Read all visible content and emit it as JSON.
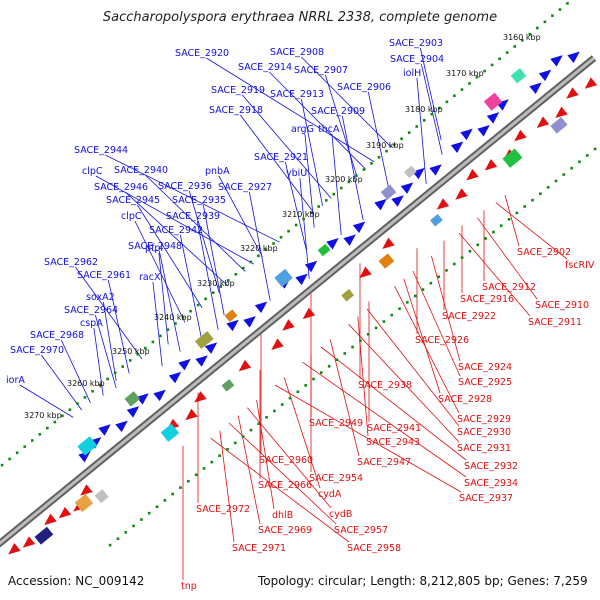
{
  "title": "Saccharopolyspora erythraea NRRL 2338, complete genome",
  "accession": "Accession: NC_009142",
  "topology": "Topology: circular; Length: 8,212,805 bp; Genes: 7,259",
  "colors": {
    "forward": "#1010e0",
    "reverse": "#e01010",
    "backbone": "#909090",
    "ticks": "#108810"
  },
  "kbp_ticks": [
    "3160 kbp",
    "3170 kbp",
    "3180 kbp",
    "3190 kbp",
    "3200 kbp",
    "3210 kbp",
    "3220 kbp",
    "3230 kbp",
    "3240 kbp",
    "3250 kbp",
    "3260 kbp",
    "3270 kbp"
  ],
  "forward_labels": [
    "SACE_2903",
    "SACE_2908",
    "SACE_2904",
    "SACE_2920",
    "SACE_2914",
    "SACE_2907",
    "iolH",
    "SACE_2906",
    "SACE_2919",
    "SACE_2913",
    "SACE_2918",
    "SACE_2909",
    "argG",
    "thcA",
    "SACE_2944",
    "SACE_2921",
    "pnbA",
    "clpC",
    "SACE_2940",
    "ybiU",
    "SACE_2946",
    "SACE_2936",
    "SACE_2927",
    "SACE_2945",
    "SACE_2935",
    "clpC",
    "SACE_2939",
    "SACE_2942",
    "pfpI",
    "SACE_2948",
    "SACE_2962",
    "racX",
    "SACE_2961",
    "soxA2",
    "SACE_2964",
    "cspA",
    "SACE_2968",
    "SACE_2970",
    "iorA"
  ],
  "reverse_labels": [
    "SACE_2902",
    "fscRIV",
    "SACE_2912",
    "SACE_2910",
    "SACE_2916",
    "SACE_2911",
    "SACE_2922",
    "SACE_2926",
    "SACE_2924",
    "SACE_2938",
    "SACE_2925",
    "SACE_2928",
    "SACE_2929",
    "SACE_2949",
    "SACE_2941",
    "SACE_2930",
    "SACE_2943",
    "SACE_2931",
    "SACE_2960",
    "SACE_2947",
    "SACE_2932",
    "SACE_2954",
    "SACE_2934",
    "SACE_2966",
    "cydA",
    "SACE_2937",
    "SACE_2972",
    "dhlB",
    "cydB",
    "SACE_2969",
    "SACE_2957",
    "SACE_2971",
    "SACE_2958",
    "tnp"
  ]
}
